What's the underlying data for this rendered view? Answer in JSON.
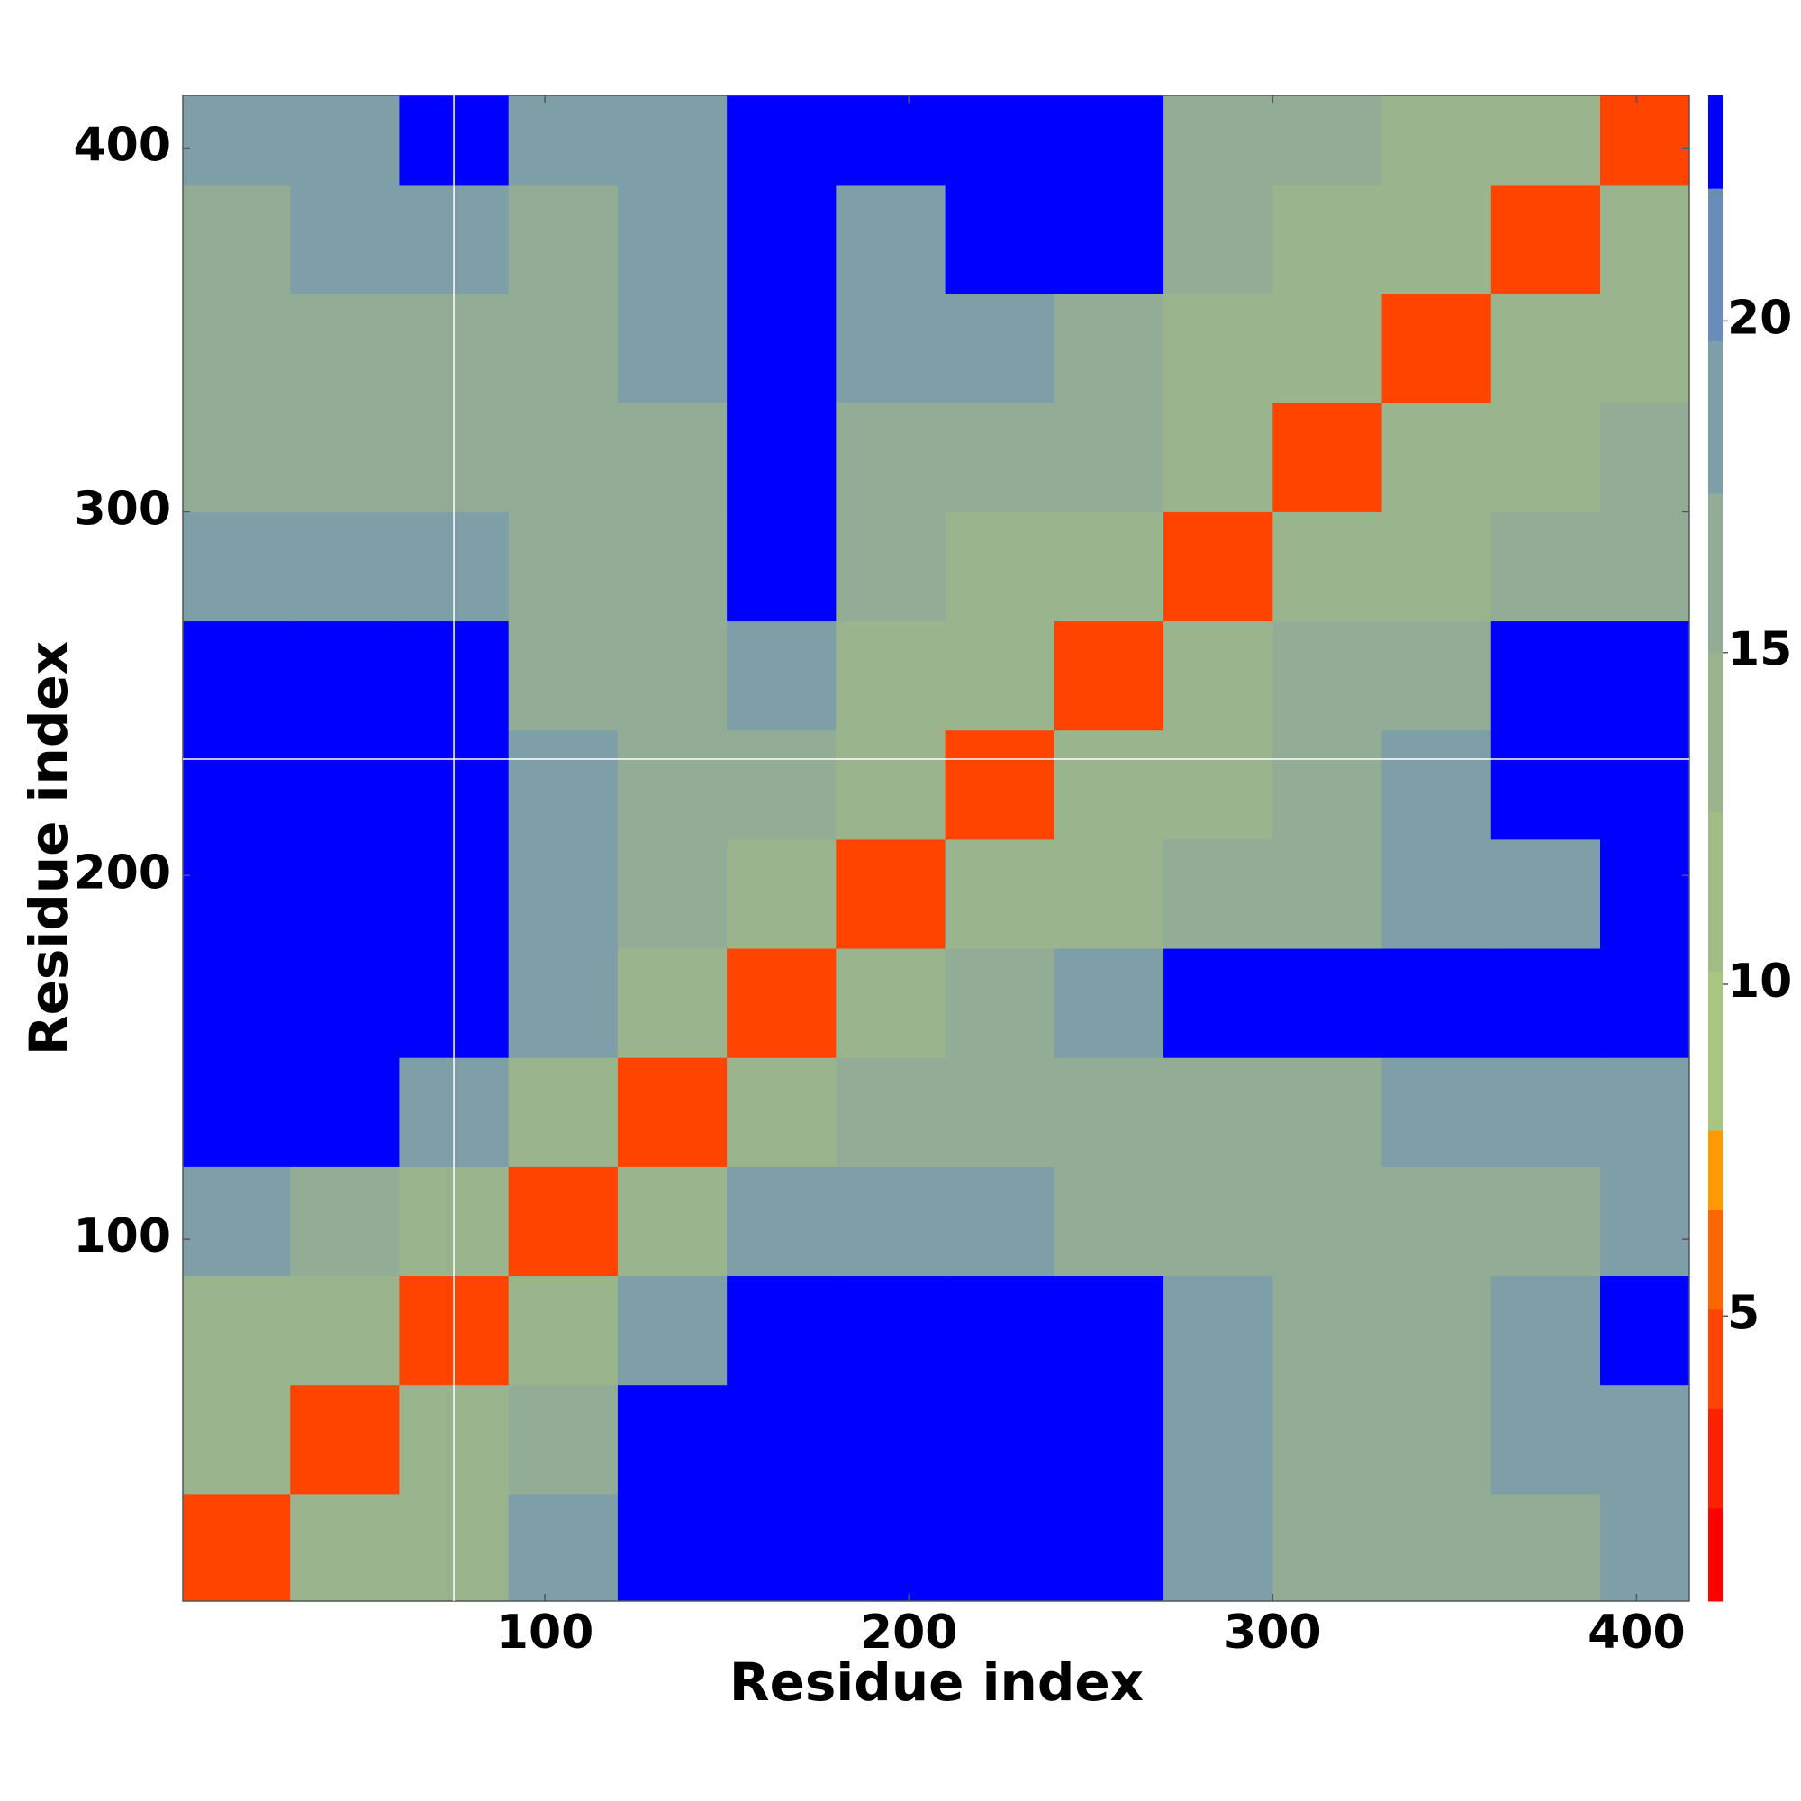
{
  "chart_data": {
    "type": "heatmap",
    "xlabel": "Residue index",
    "ylabel": "Residue index",
    "xlim": [
      0.5,
      414.5
    ],
    "ylim": [
      0.5,
      414.5
    ],
    "xticks": [
      100,
      200,
      300,
      400
    ],
    "yticks": [
      100,
      200,
      300,
      400
    ],
    "xbins": [
      0.5,
      30,
      60,
      90,
      120,
      150,
      180,
      210,
      240,
      270,
      300,
      330,
      360,
      390,
      414.5
    ],
    "ybins": [
      0.5,
      30,
      60,
      90,
      120,
      150,
      180,
      210,
      240,
      270,
      300,
      330,
      360,
      390,
      414.5
    ],
    "z": [
      [
        5,
        13,
        14,
        18,
        23,
        23,
        23,
        23,
        23,
        19,
        17,
        16,
        17,
        18
      ],
      [
        13,
        5,
        13,
        17,
        23,
        23,
        23,
        23,
        23,
        19,
        16,
        16,
        18,
        19
      ],
      [
        14,
        13,
        5,
        14,
        18,
        23,
        23,
        23,
        23,
        19,
        17,
        17,
        18,
        23
      ],
      [
        18,
        17,
        14,
        5,
        13,
        18,
        18,
        19,
        15,
        15,
        16,
        17,
        17,
        19
      ],
      [
        23,
        23,
        18,
        13,
        5,
        13,
        15,
        16,
        15,
        15,
        16,
        19,
        18,
        19
      ],
      [
        23,
        23,
        23,
        18,
        13,
        5,
        14,
        16,
        19,
        23,
        23,
        23,
        23,
        23
      ],
      [
        23,
        23,
        23,
        18,
        15,
        14,
        5,
        13,
        14,
        15,
        17,
        18,
        19,
        23
      ],
      [
        23,
        23,
        23,
        19,
        16,
        16,
        13,
        5,
        13,
        14,
        16,
        19,
        23,
        23
      ],
      [
        23,
        23,
        23,
        15,
        15,
        19,
        14,
        13,
        5,
        13,
        15,
        17,
        23,
        23
      ],
      [
        19,
        19,
        19,
        15,
        15,
        23,
        15,
        14,
        13,
        5,
        13,
        14,
        16,
        17
      ],
      [
        17,
        16,
        17,
        16,
        16,
        23,
        17,
        16,
        15,
        13,
        5,
        13,
        14,
        15
      ],
      [
        16,
        16,
        17,
        17,
        19,
        23,
        18,
        19,
        17,
        14,
        13,
        5,
        13,
        14
      ],
      [
        17,
        18,
        18,
        17,
        18,
        23,
        19,
        23,
        23,
        16,
        14,
        13,
        5,
        13
      ],
      [
        18,
        19,
        23,
        19,
        19,
        23,
        23,
        23,
        23,
        17,
        15,
        14,
        13,
        5
      ]
    ],
    "zlim": [
      0.7,
      23.4
    ],
    "zticks": [
      5,
      10,
      15,
      20
    ],
    "color_levels": [
      0.7,
      2.1,
      3.6,
      5.1,
      6.6,
      7.8,
      10.2,
      12.6,
      15,
      17.4,
      19.7,
      22,
      23.4
    ],
    "colors": [
      "#ff0000",
      "#ff2200",
      "#ff4400",
      "#ff6600",
      "#ff9900",
      "#a9c57f",
      "#a2bc86",
      "#9ab48e",
      "#92ac96",
      "#7f9fa8",
      "#6a8cb8",
      "#0000ff"
    ],
    "x_lines": [
      75
    ],
    "y_lines": [
      232
    ]
  }
}
